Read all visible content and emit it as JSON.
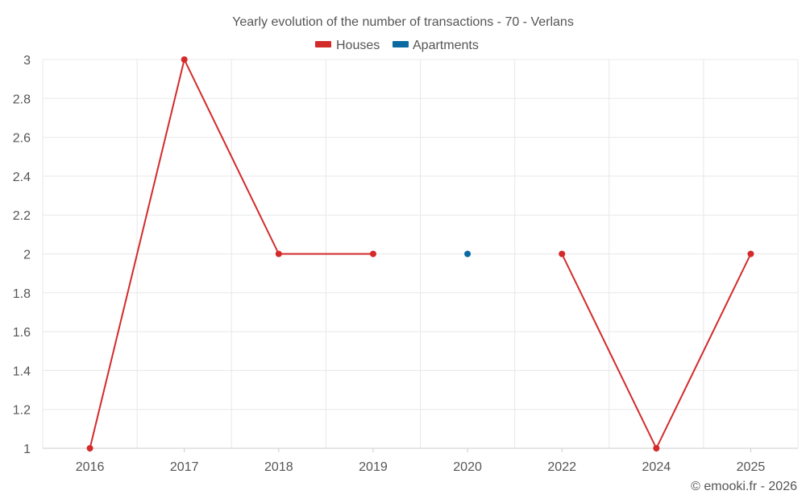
{
  "chart_data": {
    "type": "line",
    "title": "Yearly evolution of the number of transactions - 70 - Verlans",
    "categories": [
      "2016",
      "2017",
      "2018",
      "2019",
      "2020",
      "2022",
      "2024",
      "2025"
    ],
    "ylim": [
      1,
      3
    ],
    "yticks": [
      "1",
      "1.2",
      "1.4",
      "1.6",
      "1.8",
      "2",
      "2.2",
      "2.4",
      "2.6",
      "2.8",
      "3"
    ],
    "grid": true,
    "legend_position": "top-center",
    "series": [
      {
        "name": "Houses",
        "color": "#d32a2a",
        "values": [
          1,
          3,
          2,
          2,
          null,
          2,
          1,
          2
        ]
      },
      {
        "name": "Apartments",
        "color": "#0a6aa1",
        "values": [
          null,
          null,
          null,
          null,
          2,
          null,
          null,
          null
        ]
      }
    ]
  },
  "credit": "© emooki.fr - 2026"
}
